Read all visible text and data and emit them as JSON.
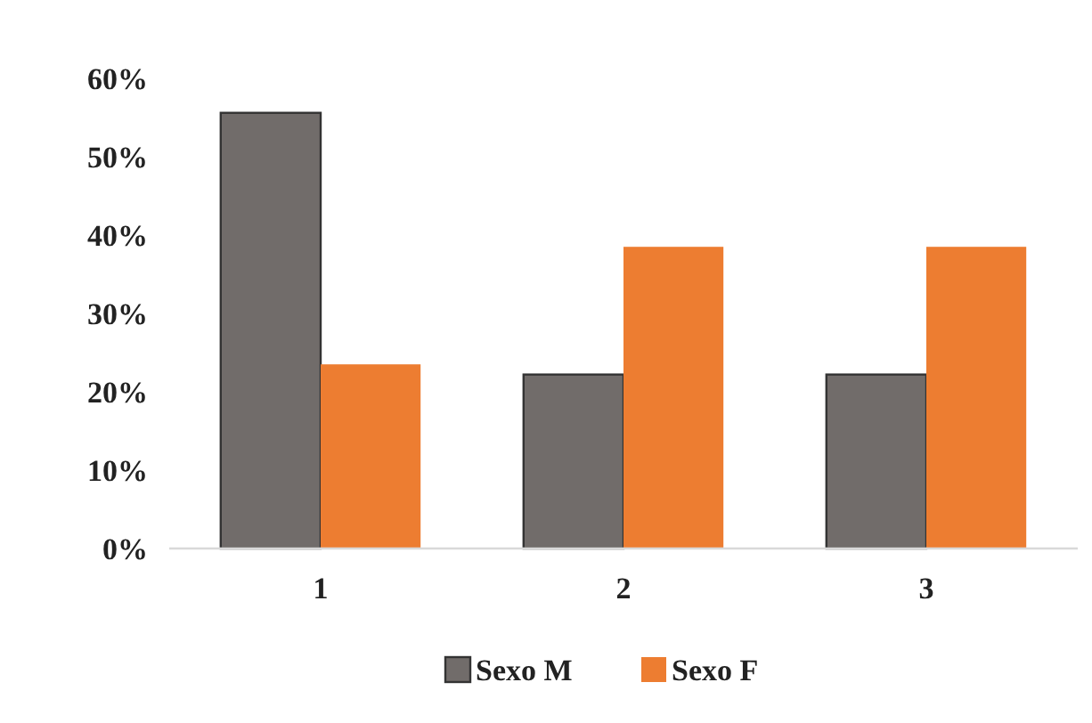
{
  "chart_data": {
    "type": "bar",
    "categories": [
      "1",
      "2",
      "3"
    ],
    "series": [
      {
        "name": "Sexo M",
        "color": "#716c6a",
        "values": [
          55.6,
          22.2,
          22.2
        ]
      },
      {
        "name": "Sexo F",
        "color": "#ed7d31",
        "values": [
          23.5,
          38.5,
          38.5
        ]
      }
    ],
    "ylim": [
      0,
      60
    ],
    "yticks": [
      {
        "value": 0,
        "label": "0%"
      },
      {
        "value": 10,
        "label": "10%"
      },
      {
        "value": 20,
        "label": "20%"
      },
      {
        "value": 30,
        "label": "30%"
      },
      {
        "value": 40,
        "label": "40%"
      },
      {
        "value": 50,
        "label": "50%"
      },
      {
        "value": 60,
        "label": "60%"
      }
    ],
    "grid": false,
    "legend": "bottom"
  }
}
